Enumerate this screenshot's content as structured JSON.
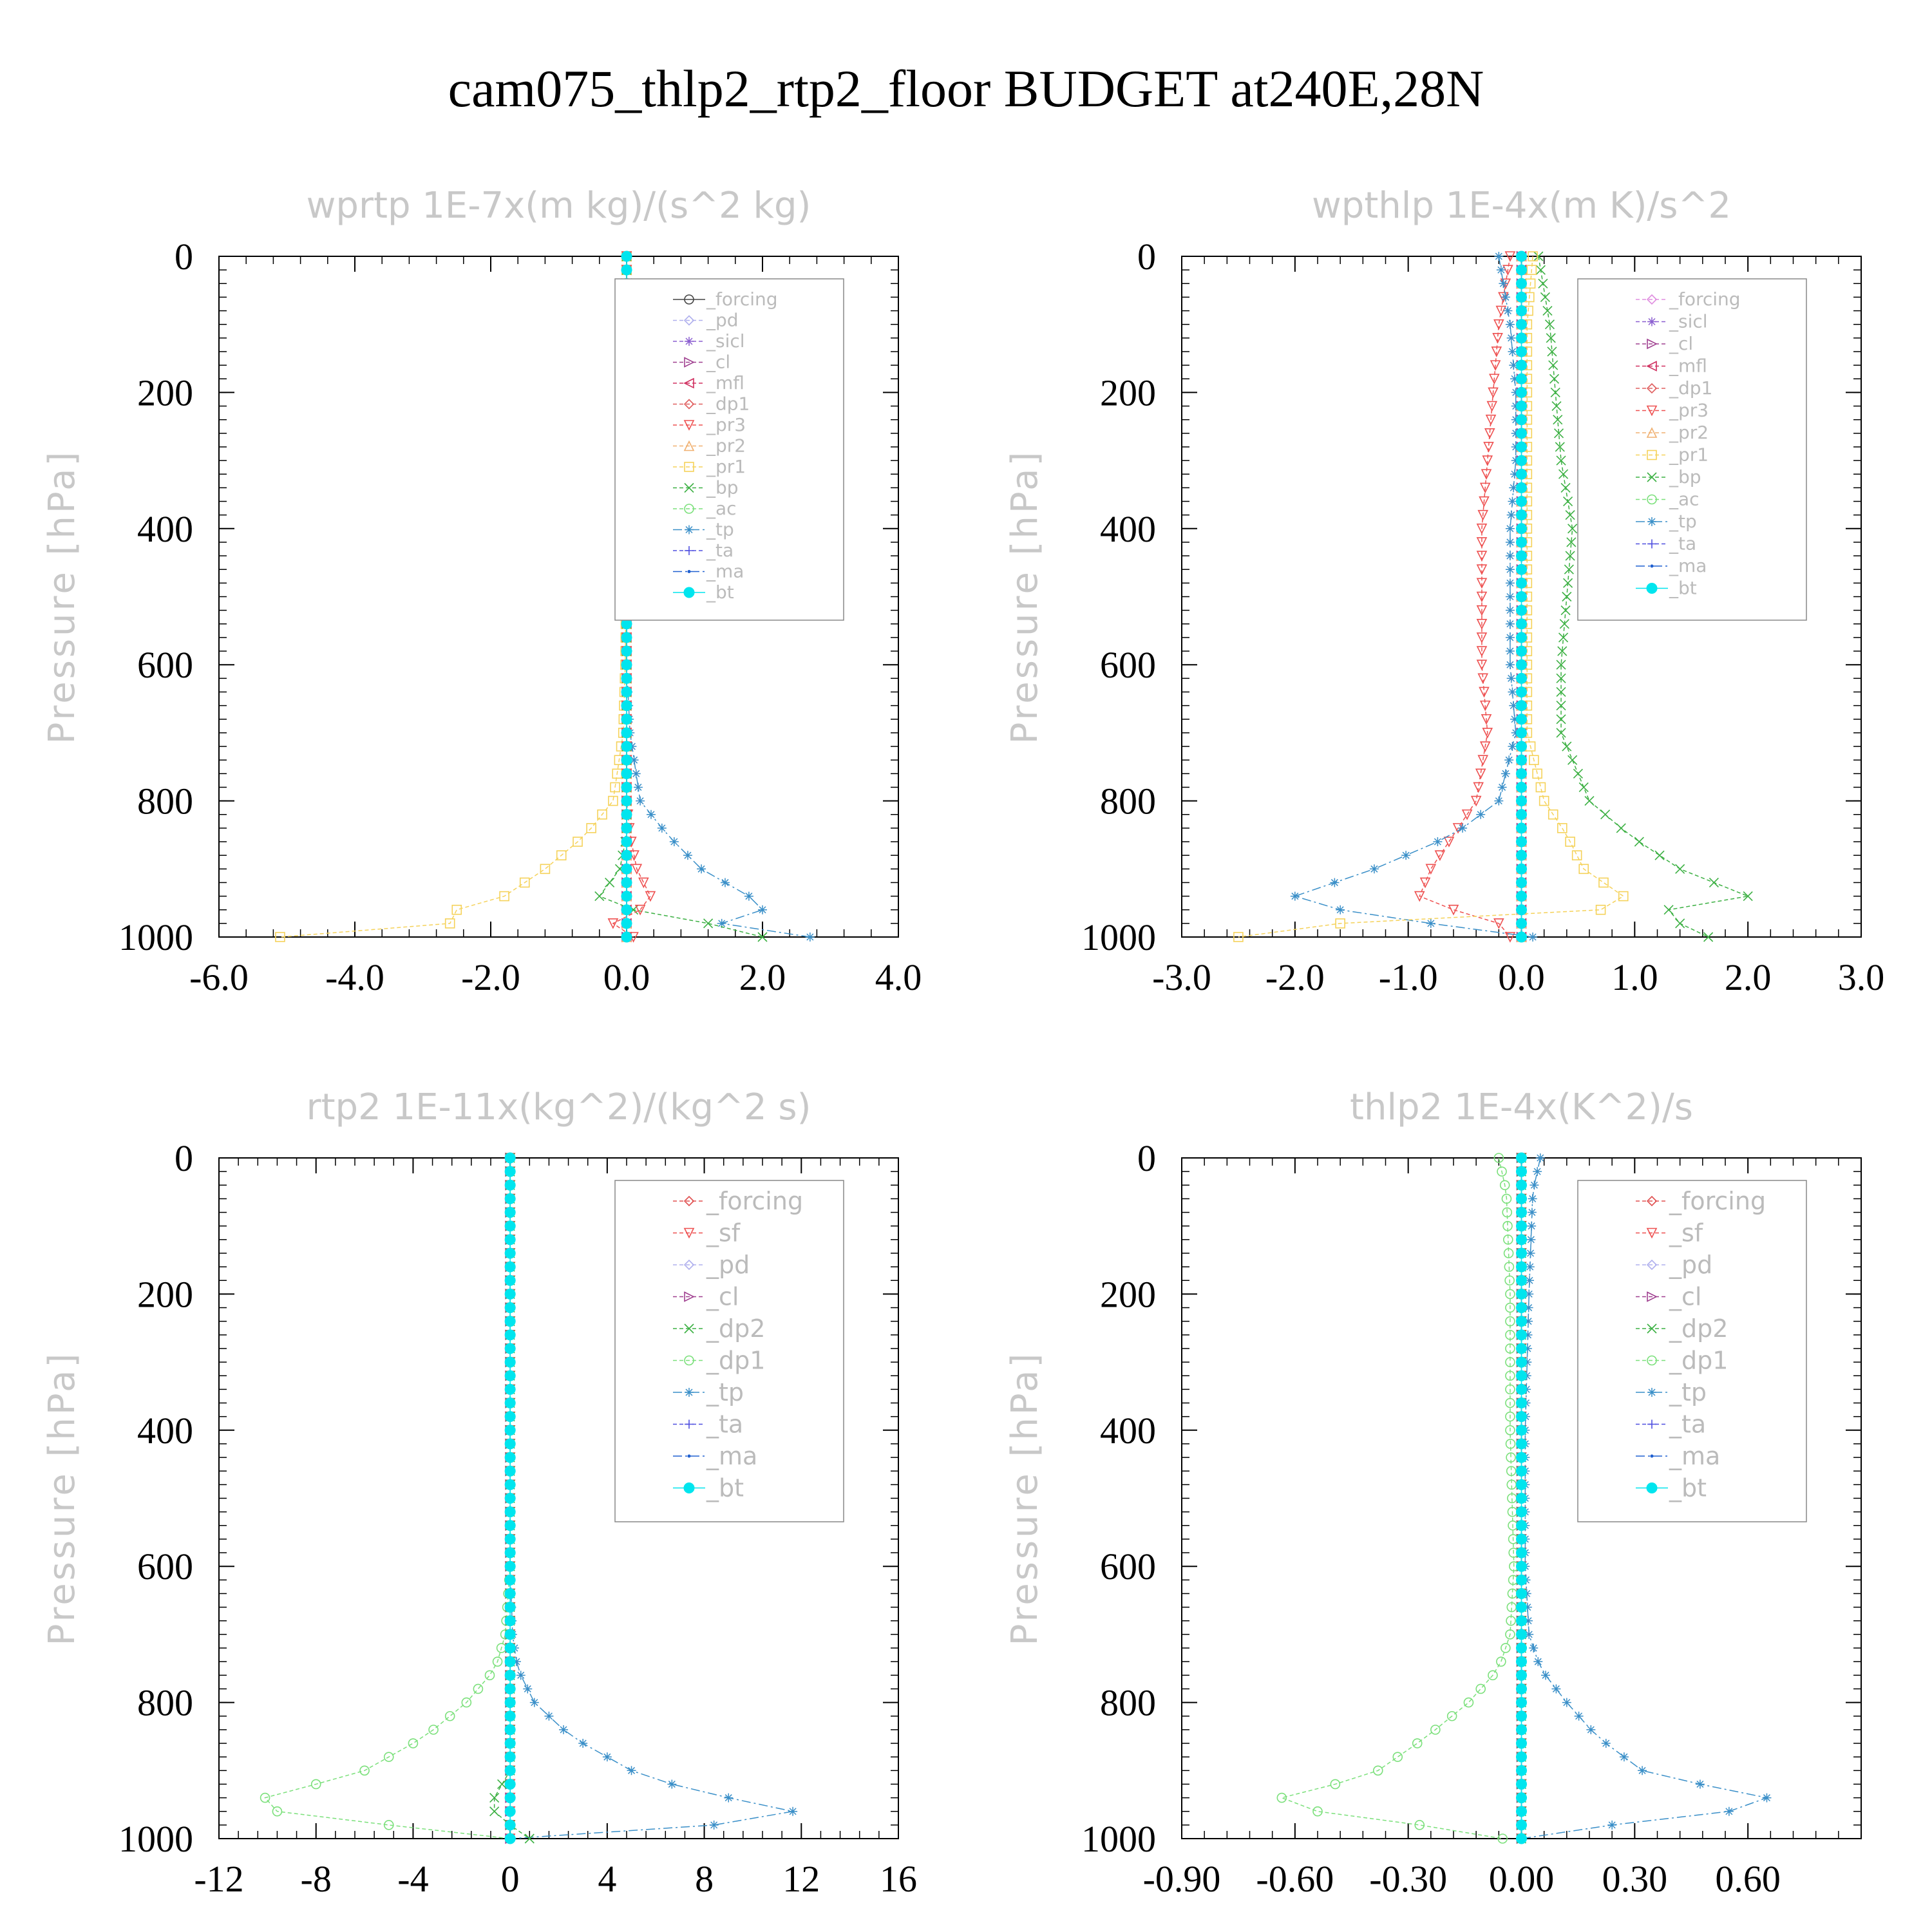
{
  "figure_title": "cam075_thlp2_rtp2_floor  BUDGET at240E,28N",
  "colors": {
    "forcing_dark": "#444444",
    "forcing_light": "#e08fe0",
    "forcing_red": "#e05050",
    "pd": "#b0b0ee",
    "sicl": "#8b5fd0",
    "cl": "#a04090",
    "mfl": "#d03060",
    "dp1": "#e06060",
    "pr3": "#ee5050",
    "pr2": "#f0b070",
    "pr1": "#f5d25a",
    "bp": "#3cb043",
    "ac": "#7be07b",
    "tp": "#3a8fc8",
    "ta": "#5050e0",
    "ma": "#2060d0",
    "bt": "#00e5ee",
    "sf": "#ee5050",
    "dp2": "#3cb043"
  },
  "chart_data": [
    {
      "type": "line",
      "title": "wprtp  1E-7x(m kg)/(s^2 kg)",
      "ylabel": "Pressure [hPa]",
      "xlim": [
        -6.0,
        4.0
      ],
      "ylim": [
        1000,
        0
      ],
      "xticks": [
        "-6.0",
        "-4.0",
        "-2.0",
        "0.0",
        "2.0",
        "4.0"
      ],
      "yticks": [
        "0",
        "200",
        "400",
        "600",
        "800",
        "1000"
      ],
      "legend_position": "top-right",
      "legend": [
        "_forcing",
        "_pd",
        "_sicl",
        "_cl",
        "_mfl",
        "_dp1",
        "_pr3",
        "_pr2",
        "_pr1",
        "_bp",
        "_ac",
        "_tp",
        "_ta",
        "_ma",
        "_bt"
      ],
      "y": [
        0,
        200,
        400,
        600,
        700,
        800,
        850,
        900,
        940,
        960,
        980,
        990,
        1000
      ],
      "series": [
        {
          "name": "_pr1",
          "values": [
            0,
            0,
            0,
            -0.02,
            -0.05,
            -0.2,
            -0.6,
            -1.2,
            -1.8,
            -2.5,
            -2.6,
            -5.1,
            -5.1
          ]
        },
        {
          "name": "_tp",
          "values": [
            0,
            0,
            0,
            0,
            0.05,
            0.2,
            0.6,
            1.1,
            1.8,
            2.0,
            1.4,
            0.9,
            2.7
          ]
        },
        {
          "name": "_bp",
          "values": [
            0,
            0,
            0,
            0,
            0,
            0,
            0,
            -0.1,
            -0.4,
            0.1,
            1.2,
            2.5,
            2.0
          ]
        },
        {
          "name": "_pr3",
          "values": [
            0,
            0,
            0,
            0,
            0,
            0,
            0.05,
            0.15,
            0.35,
            0.2,
            -0.2,
            -0.3,
            0.1
          ]
        },
        {
          "name": "_bt",
          "values": [
            0,
            0,
            0,
            0,
            0,
            0,
            0,
            0,
            0,
            0,
            0,
            0,
            0
          ]
        }
      ]
    },
    {
      "type": "line",
      "title": "wpthlp  1E-4x(m K)/s^2",
      "ylabel": "Pressure [hPa]",
      "xlim": [
        -3.0,
        3.0
      ],
      "ylim": [
        1000,
        0
      ],
      "xticks": [
        "-3.0",
        "-2.0",
        "-1.0",
        "0.0",
        "1.0",
        "2.0",
        "3.0"
      ],
      "yticks": [
        "0",
        "200",
        "400",
        "600",
        "800",
        "1000"
      ],
      "legend_position": "top-right",
      "legend": [
        "_forcing",
        "_sicl",
        "_cl",
        "_mfl",
        "_dp1",
        "_pr3",
        "_pr2",
        "_pr1",
        "_bp",
        "_ac",
        "_tp",
        "_ta",
        "_ma",
        "_bt"
      ],
      "y": [
        0,
        100,
        200,
        300,
        400,
        500,
        600,
        700,
        800,
        850,
        900,
        940,
        960,
        980,
        1000
      ],
      "series": [
        {
          "name": "_bp",
          "values": [
            0.15,
            0.25,
            0.3,
            0.35,
            0.45,
            0.4,
            0.35,
            0.35,
            0.6,
            0.95,
            1.4,
            2.0,
            1.3,
            1.4,
            1.65
          ]
        },
        {
          "name": "_pr3",
          "values": [
            -0.1,
            -0.2,
            -0.25,
            -0.3,
            -0.35,
            -0.35,
            -0.35,
            -0.3,
            -0.4,
            -0.6,
            -0.8,
            -0.9,
            -0.6,
            -0.2,
            -0.1
          ]
        },
        {
          "name": "_tp",
          "values": [
            -0.2,
            -0.1,
            -0.05,
            -0.05,
            -0.1,
            -0.1,
            -0.1,
            -0.05,
            -0.2,
            -0.6,
            -1.3,
            -2.0,
            -1.6,
            -0.8,
            0.1
          ]
        },
        {
          "name": "_pr1",
          "values": [
            0.1,
            0.05,
            0.05,
            0.05,
            0.05,
            0.05,
            0.05,
            0.05,
            0.2,
            0.4,
            0.55,
            0.9,
            0.7,
            -1.6,
            -2.5
          ]
        },
        {
          "name": "_bt",
          "values": [
            0,
            0,
            0,
            0,
            0,
            0,
            0,
            0,
            0,
            0,
            0,
            0,
            0,
            0,
            0
          ]
        }
      ]
    },
    {
      "type": "line",
      "title": "rtp2  1E-11x(kg^2)/(kg^2 s)",
      "ylabel": "Pressure [hPa]",
      "xlim": [
        -12,
        16
      ],
      "ylim": [
        1000,
        0
      ],
      "xticks": [
        "-12",
        "-8",
        "-4",
        "0",
        "4",
        "8",
        "12",
        "16"
      ],
      "yticks": [
        "0",
        "200",
        "400",
        "600",
        "800",
        "1000"
      ],
      "legend_position": "top-right",
      "legend": [
        "_forcing",
        "_sf",
        "_pd",
        "_cl",
        "_dp2",
        "_dp1",
        "_tp",
        "_ta",
        "_ma",
        "_bt"
      ],
      "y": [
        0,
        200,
        400,
        600,
        700,
        750,
        800,
        850,
        900,
        930,
        950,
        970,
        990,
        1000
      ],
      "series": [
        {
          "name": "_dp1",
          "values": [
            0,
            0,
            0,
            0,
            -0.2,
            -0.6,
            -1.8,
            -3.5,
            -6.0,
            -9.0,
            -11.2,
            -8.0,
            -2.0,
            0
          ]
        },
        {
          "name": "_tp",
          "values": [
            0,
            0,
            0,
            0,
            0.1,
            0.3,
            1.0,
            2.5,
            5.0,
            7.5,
            10.5,
            12.8,
            4.0,
            0
          ]
        },
        {
          "name": "_dp2",
          "values": [
            0,
            0,
            0,
            0,
            0,
            0,
            0,
            0,
            0,
            -0.5,
            -0.8,
            -0.5,
            0.5,
            0.8
          ]
        },
        {
          "name": "_bt",
          "values": [
            0,
            0,
            0,
            0,
            0,
            0,
            0,
            0,
            0,
            0,
            0,
            0,
            0,
            0
          ]
        }
      ]
    },
    {
      "type": "line",
      "title": "thlp2  1E-4x(K^2)/s",
      "ylabel": "Pressure [hPa]",
      "xlim": [
        -0.9,
        0.9
      ],
      "ylim": [
        1000,
        0
      ],
      "xticks": [
        "-0.90",
        "-0.60",
        "-0.30",
        "0.00",
        "0.30",
        "0.60"
      ],
      "yticks": [
        "0",
        "200",
        "400",
        "600",
        "800",
        "1000"
      ],
      "legend_position": "top-right",
      "legend": [
        "_forcing",
        "_sf",
        "_pd",
        "_cl",
        "_dp2",
        "_dp1",
        "_tp",
        "_ta",
        "_ma",
        "_bt"
      ],
      "y": [
        0,
        50,
        200,
        400,
        600,
        700,
        750,
        800,
        850,
        900,
        930,
        950,
        965,
        990,
        1000
      ],
      "series": [
        {
          "name": "_dp1",
          "values": [
            -0.06,
            -0.04,
            -0.03,
            -0.03,
            -0.02,
            -0.03,
            -0.06,
            -0.14,
            -0.25,
            -0.38,
            -0.55,
            -0.72,
            -0.45,
            -0.15,
            -0.05
          ]
        },
        {
          "name": "_tp",
          "values": [
            0.05,
            0.03,
            0.02,
            0.01,
            0.01,
            0.02,
            0.05,
            0.12,
            0.2,
            0.32,
            0.55,
            0.75,
            0.45,
            0.1,
            0.0
          ]
        },
        {
          "name": "_bt",
          "values": [
            0,
            0,
            0,
            0,
            0,
            0,
            0,
            0,
            0,
            0,
            0,
            0,
            0,
            0,
            0
          ]
        }
      ]
    }
  ]
}
